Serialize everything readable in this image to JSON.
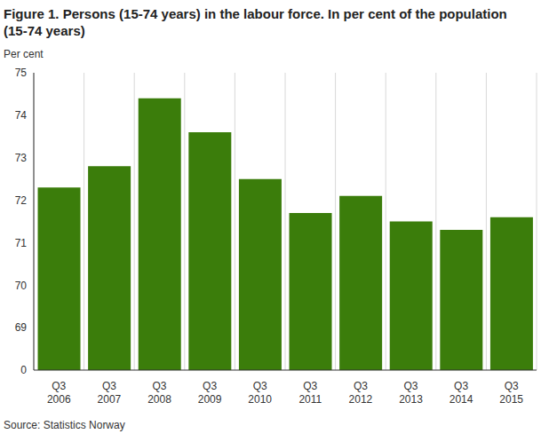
{
  "chart_data": {
    "type": "bar",
    "title": "Figure 1. Persons (15-74 years) in the labour force. In per cent of the population (15-74 years)",
    "y_label": "Per cent",
    "source": "Source: Statistics Norway",
    "categories": [
      "Q3 2006",
      "Q3 2007",
      "Q3 2008",
      "Q3 2009",
      "Q3 2010",
      "Q3 2011",
      "Q3 2012",
      "Q3 2013",
      "Q3 2014",
      "Q3 2015"
    ],
    "values": [
      72.3,
      72.8,
      74.4,
      73.6,
      72.5,
      71.7,
      72.1,
      71.5,
      71.3,
      71.6
    ],
    "color": "#3b7d0b",
    "ylim": [
      0,
      75
    ],
    "yticks": [
      0,
      69,
      70,
      71,
      72,
      73,
      74,
      75
    ],
    "grid": true
  }
}
